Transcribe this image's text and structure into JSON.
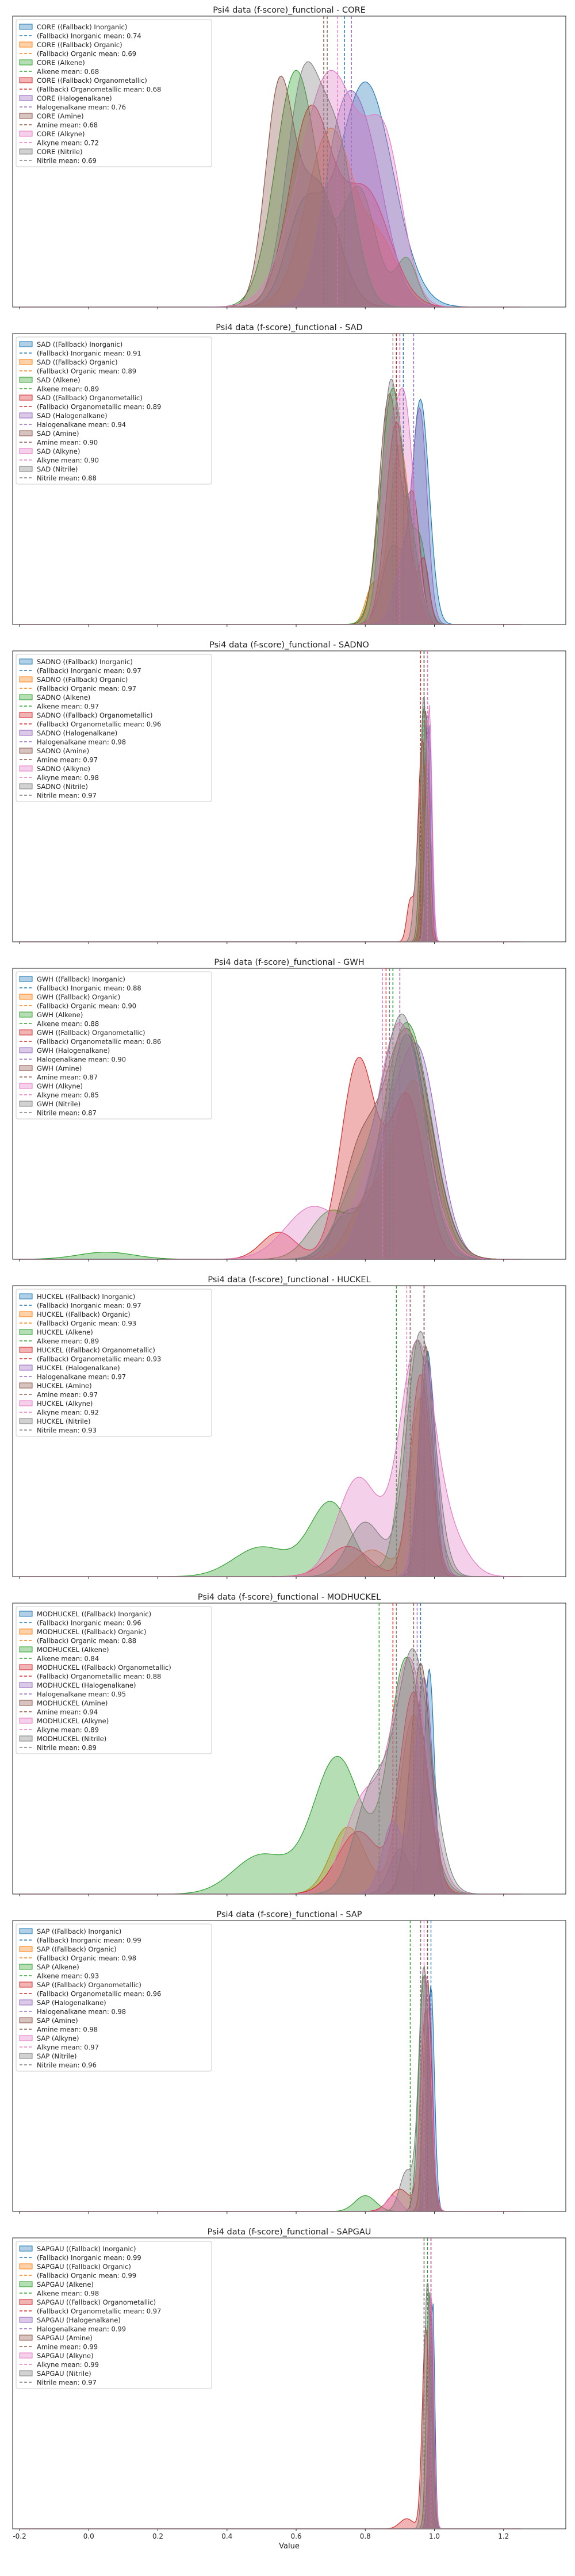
{
  "figure": {
    "xlabel": "Value",
    "x_ticks": [
      -0.2,
      0.0,
      0.2,
      0.4,
      0.6,
      0.8,
      1.0,
      1.2
    ],
    "xlim": [
      -0.22,
      1.38
    ]
  },
  "colors": {
    "Inorganic": "#1f77b4",
    "Organic": "#ff7f0e",
    "Alkene": "#2ca02c",
    "Organometallic": "#d62728",
    "Halogenalkane": "#9467bd",
    "Amine": "#8c564b",
    "Alkyne": "#e377c2",
    "Nitrile": "#7f7f7f"
  },
  "chart_data": [
    {
      "type": "area",
      "title": "Psi4 data (f-score)_functional - CORE",
      "legend_placement": "top-left",
      "series": [
        {
          "name": "CORE ((Fallback) Inorganic)",
          "mean_label": "(Fallback) Inorganic mean: 0.74",
          "mean": 0.74
        },
        {
          "name": "CORE ((Fallback) Organic)",
          "mean_label": "(Fallback) Organic mean: 0.69",
          "mean": 0.69
        },
        {
          "name": "CORE (Alkene)",
          "mean_label": "Alkene mean: 0.68",
          "mean": 0.68
        },
        {
          "name": "CORE ((Fallback) Organometallic)",
          "mean_label": "(Fallback) Organometallic mean: 0.68",
          "mean": 0.68
        },
        {
          "name": "CORE (Halogenalkane)",
          "mean_label": "Halogenalkane mean: 0.76",
          "mean": 0.76
        },
        {
          "name": "CORE (Amine)",
          "mean_label": "Amine mean: 0.68",
          "mean": 0.68
        },
        {
          "name": "CORE (Alkyne)",
          "mean_label": "Alkyne mean: 0.72",
          "mean": 0.72
        },
        {
          "name": "CORE (Nitrile)",
          "mean_label": "Nitrile mean: 0.69",
          "mean": 0.69
        }
      ]
    },
    {
      "type": "area",
      "title": "Psi4 data (f-score)_functional - SAD",
      "legend_placement": "top-left",
      "series": [
        {
          "name": "SAD ((Fallback) Inorganic)",
          "mean_label": "(Fallback) Inorganic mean: 0.91",
          "mean": 0.91
        },
        {
          "name": "SAD ((Fallback) Organic)",
          "mean_label": "(Fallback) Organic mean: 0.89",
          "mean": 0.89
        },
        {
          "name": "SAD (Alkene)",
          "mean_label": "Alkene mean: 0.89",
          "mean": 0.89
        },
        {
          "name": "SAD ((Fallback) Organometallic)",
          "mean_label": "(Fallback) Organometallic mean: 0.89",
          "mean": 0.89
        },
        {
          "name": "SAD (Halogenalkane)",
          "mean_label": "Halogenalkane mean: 0.94",
          "mean": 0.94
        },
        {
          "name": "SAD (Amine)",
          "mean_label": "Amine mean: 0.90",
          "mean": 0.9
        },
        {
          "name": "SAD (Alkyne)",
          "mean_label": "Alkyne mean: 0.90",
          "mean": 0.9
        },
        {
          "name": "SAD (Nitrile)",
          "mean_label": "Nitrile mean: 0.88",
          "mean": 0.88
        }
      ]
    },
    {
      "type": "area",
      "title": "Psi4 data (f-score)_functional - SADNO",
      "legend_placement": "top-left",
      "series": [
        {
          "name": "SADNO ((Fallback) Inorganic)",
          "mean_label": "(Fallback) Inorganic mean: 0.97",
          "mean": 0.97
        },
        {
          "name": "SADNO ((Fallback) Organic)",
          "mean_label": "(Fallback) Organic mean: 0.97",
          "mean": 0.97
        },
        {
          "name": "SADNO (Alkene)",
          "mean_label": "Alkene mean: 0.97",
          "mean": 0.97
        },
        {
          "name": "SADNO ((Fallback) Organometallic)",
          "mean_label": "(Fallback) Organometallic mean: 0.96",
          "mean": 0.96
        },
        {
          "name": "SADNO (Halogenalkane)",
          "mean_label": "Halogenalkane mean: 0.98",
          "mean": 0.98
        },
        {
          "name": "SADNO (Amine)",
          "mean_label": "Amine mean: 0.97",
          "mean": 0.97
        },
        {
          "name": "SADNO (Alkyne)",
          "mean_label": "Alkyne mean: 0.98",
          "mean": 0.98
        },
        {
          "name": "SADNO (Nitrile)",
          "mean_label": "Nitrile mean: 0.97",
          "mean": 0.97
        }
      ]
    },
    {
      "type": "area",
      "title": "Psi4 data (f-score)_functional - GWH",
      "legend_placement": "top-left",
      "series": [
        {
          "name": "GWH ((Fallback) Inorganic)",
          "mean_label": "(Fallback) Inorganic mean: 0.88",
          "mean": 0.88
        },
        {
          "name": "GWH ((Fallback) Organic)",
          "mean_label": "(Fallback) Organic mean: 0.90",
          "mean": 0.9
        },
        {
          "name": "GWH (Alkene)",
          "mean_label": "Alkene mean: 0.88",
          "mean": 0.88
        },
        {
          "name": "GWH ((Fallback) Organometallic)",
          "mean_label": "(Fallback) Organometallic mean: 0.86",
          "mean": 0.86
        },
        {
          "name": "GWH (Halogenalkane)",
          "mean_label": "Halogenalkane mean: 0.90",
          "mean": 0.9
        },
        {
          "name": "GWH (Amine)",
          "mean_label": "Amine mean: 0.87",
          "mean": 0.87
        },
        {
          "name": "GWH (Alkyne)",
          "mean_label": "Alkyne mean: 0.85",
          "mean": 0.85
        },
        {
          "name": "GWH (Nitrile)",
          "mean_label": "Nitrile mean: 0.87",
          "mean": 0.87
        }
      ]
    },
    {
      "type": "area",
      "title": "Psi4 data (f-score)_functional - HUCKEL",
      "legend_placement": "top-left",
      "series": [
        {
          "name": "HUCKEL ((Fallback) Inorganic)",
          "mean_label": "(Fallback) Inorganic mean: 0.97",
          "mean": 0.97
        },
        {
          "name": "HUCKEL ((Fallback) Organic)",
          "mean_label": "(Fallback) Organic mean: 0.93",
          "mean": 0.93
        },
        {
          "name": "HUCKEL (Alkene)",
          "mean_label": "Alkene mean: 0.89",
          "mean": 0.89
        },
        {
          "name": "HUCKEL ((Fallback) Organometallic)",
          "mean_label": "(Fallback) Organometallic mean: 0.93",
          "mean": 0.93
        },
        {
          "name": "HUCKEL (Halogenalkane)",
          "mean_label": "Halogenalkane mean: 0.97",
          "mean": 0.97
        },
        {
          "name": "HUCKEL (Amine)",
          "mean_label": "Amine mean: 0.97",
          "mean": 0.97
        },
        {
          "name": "HUCKEL (Alkyne)",
          "mean_label": "Alkyne mean: 0.92",
          "mean": 0.92
        },
        {
          "name": "HUCKEL (Nitrile)",
          "mean_label": "Nitrile mean: 0.93",
          "mean": 0.93
        }
      ]
    },
    {
      "type": "area",
      "title": "Psi4 data (f-score)_functional - MODHUCKEL",
      "legend_placement": "top-left",
      "series": [
        {
          "name": "MODHUCKEL ((Fallback) Inorganic)",
          "mean_label": "(Fallback) Inorganic mean: 0.96",
          "mean": 0.96
        },
        {
          "name": "MODHUCKEL ((Fallback) Organic)",
          "mean_label": "(Fallback) Organic mean: 0.88",
          "mean": 0.88
        },
        {
          "name": "MODHUCKEL (Alkene)",
          "mean_label": "Alkene mean: 0.84",
          "mean": 0.84
        },
        {
          "name": "MODHUCKEL ((Fallback) Organometallic)",
          "mean_label": "(Fallback) Organometallic mean: 0.88",
          "mean": 0.88
        },
        {
          "name": "MODHUCKEL (Halogenalkane)",
          "mean_label": "Halogenalkane mean: 0.95",
          "mean": 0.95
        },
        {
          "name": "MODHUCKEL (Amine)",
          "mean_label": "Amine mean: 0.94",
          "mean": 0.94
        },
        {
          "name": "MODHUCKEL (Alkyne)",
          "mean_label": "Alkyne mean: 0.89",
          "mean": 0.89
        },
        {
          "name": "MODHUCKEL (Nitrile)",
          "mean_label": "Nitrile mean: 0.89",
          "mean": 0.89
        }
      ]
    },
    {
      "type": "area",
      "title": "Psi4 data (f-score)_functional - SAP",
      "legend_placement": "top-left",
      "series": [
        {
          "name": "SAP ((Fallback) Inorganic)",
          "mean_label": "(Fallback) Inorganic mean: 0.99",
          "mean": 0.99
        },
        {
          "name": "SAP ((Fallback) Organic)",
          "mean_label": "(Fallback) Organic mean: 0.98",
          "mean": 0.98
        },
        {
          "name": "SAP (Alkene)",
          "mean_label": "Alkene mean: 0.93",
          "mean": 0.93
        },
        {
          "name": "SAP ((Fallback) Organometallic)",
          "mean_label": "(Fallback) Organometallic mean: 0.96",
          "mean": 0.96
        },
        {
          "name": "SAP (Halogenalkane)",
          "mean_label": "Halogenalkane mean: 0.98",
          "mean": 0.98
        },
        {
          "name": "SAP (Amine)",
          "mean_label": "Amine mean: 0.98",
          "mean": 0.98
        },
        {
          "name": "SAP (Alkyne)",
          "mean_label": "Alkyne mean: 0.97",
          "mean": 0.97
        },
        {
          "name": "SAP (Nitrile)",
          "mean_label": "Nitrile mean: 0.96",
          "mean": 0.96
        }
      ]
    },
    {
      "type": "area",
      "title": "Psi4 data (f-score)_functional - SAPGAU",
      "legend_placement": "top-left",
      "series": [
        {
          "name": "SAPGAU ((Fallback) Inorganic)",
          "mean_label": "(Fallback) Inorganic mean: 0.99",
          "mean": 0.99
        },
        {
          "name": "SAPGAU ((Fallback) Organic)",
          "mean_label": "(Fallback) Organic mean: 0.99",
          "mean": 0.99
        },
        {
          "name": "SAPGAU (Alkene)",
          "mean_label": "Alkene mean: 0.98",
          "mean": 0.98
        },
        {
          "name": "SAPGAU ((Fallback) Organometallic)",
          "mean_label": "(Fallback) Organometallic mean: 0.97",
          "mean": 0.97
        },
        {
          "name": "SAPGAU (Halogenalkane)",
          "mean_label": "Halogenalkane mean: 0.99",
          "mean": 0.99
        },
        {
          "name": "SAPGAU (Amine)",
          "mean_label": "Amine mean: 0.99",
          "mean": 0.99
        },
        {
          "name": "SAPGAU (Alkyne)",
          "mean_label": "Alkyne mean: 0.99",
          "mean": 0.99
        },
        {
          "name": "SAPGAU (Nitrile)",
          "mean_label": "Nitrile mean: 0.97",
          "mean": 0.97
        }
      ]
    }
  ]
}
